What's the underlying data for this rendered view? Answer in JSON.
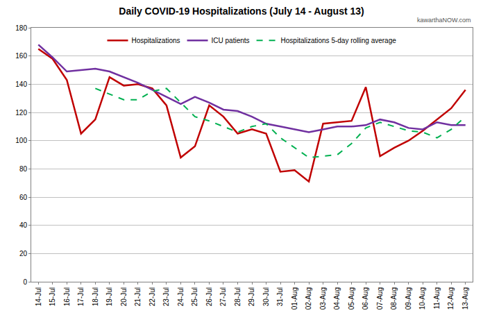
{
  "chart_data": {
    "type": "line",
    "title": "Daily COVID-19 Hospitalizations (July 14 - August 13)",
    "categories": [
      "14-Jul",
      "15-Jul",
      "16-Jul",
      "17-Jul",
      "18-Jul",
      "19-Jul",
      "20-Jul",
      "21-Jul",
      "22-Jul",
      "23-Jul",
      "24-Jul",
      "25-Jul",
      "26-Jul",
      "27-Jul",
      "28-Jul",
      "29-Jul",
      "30-Jul",
      "31-Jul",
      "01-Aug",
      "02-Aug",
      "03-Aug",
      "04-Aug",
      "05-Aug",
      "06-Aug",
      "07-Aug",
      "08-Aug",
      "09-Aug",
      "10-Aug",
      "11-Aug",
      "12-Aug",
      "13-Aug"
    ],
    "series": [
      {
        "name": "Hospitalizations",
        "color": "#c00000",
        "line_style": "solid",
        "values": [
          165,
          158,
          143,
          105,
          115,
          145,
          139,
          140,
          137,
          125,
          88,
          96,
          125,
          117,
          105,
          108,
          105,
          78,
          79,
          71,
          112,
          113,
          114,
          138,
          89,
          95,
          100,
          107,
          115,
          123,
          136
        ]
      },
      {
        "name": "ICU patients",
        "color": "#7030a0",
        "line_style": "solid",
        "values": [
          168,
          159,
          149,
          150,
          151,
          149,
          145,
          141,
          136,
          131,
          126,
          131,
          127,
          122,
          121,
          117,
          112,
          110,
          108,
          106,
          108,
          110,
          110,
          111,
          115,
          113,
          109,
          108,
          113,
          111,
          111
        ]
      },
      {
        "name": "Hospitalizations 5-day rolling average",
        "color": "#00b050",
        "line_style": "dashed",
        "values": [
          null,
          null,
          null,
          null,
          137,
          133,
          129,
          129,
          135,
          137,
          127,
          117,
          114,
          110,
          106,
          110,
          112,
          102,
          95,
          88,
          89,
          90,
          98,
          109,
          113,
          110,
          107,
          106,
          102,
          108,
          117
        ]
      }
    ],
    "ylim": [
      0,
      180
    ],
    "yticks": [
      0,
      20,
      40,
      60,
      80,
      100,
      120,
      140,
      160,
      180
    ],
    "grid": true,
    "legend": "top",
    "annotations": [
      "kawarthaNOW.com"
    ]
  }
}
